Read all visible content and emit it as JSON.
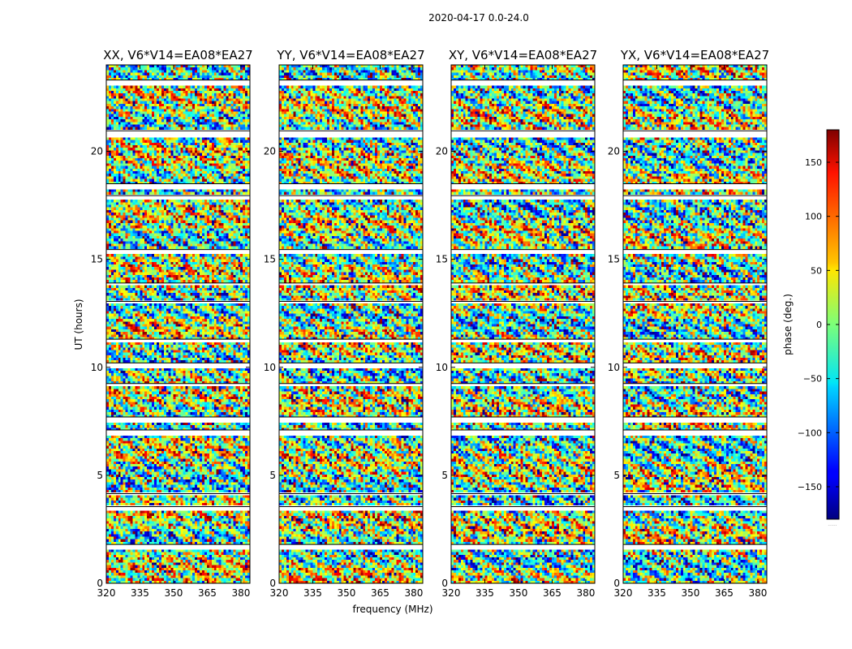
{
  "figure": {
    "suptitle": "2020-04-17 0.0-24.0",
    "xlabel": "frequency (MHz)",
    "ylabel": "UT (hours)",
    "colorbar_label": "phase (deg.)",
    "colorbar_footer": "......"
  },
  "chart_data": {
    "type": "heatmap",
    "colormap": "jet",
    "xlim": [
      320,
      384
    ],
    "ylim": [
      0,
      24
    ],
    "x_ticks": [
      320,
      335,
      350,
      365,
      380
    ],
    "y_ticks": [
      0,
      5,
      10,
      15,
      20
    ],
    "colorbar": {
      "vmin": -180,
      "vmax": 180,
      "ticks": [
        -150,
        -100,
        -50,
        0,
        50,
        100,
        150
      ],
      "tick_labels": [
        "−150",
        "−100",
        "−50",
        "0",
        "50",
        "100",
        "150"
      ]
    },
    "panels": [
      {
        "title": "XX, V6*V14=EA08*EA27"
      },
      {
        "title": "YY, V6*V14=EA08*EA27"
      },
      {
        "title": "XY, V6*V14=EA08*EA27"
      },
      {
        "title": "YX, V6*V14=EA08*EA27"
      }
    ],
    "flagged_time_ranges_hours": [
      [
        1.6,
        1.8
      ],
      [
        3.4,
        3.55
      ],
      [
        4.05,
        4.15
      ],
      [
        6.8,
        7.1
      ],
      [
        7.5,
        7.7
      ],
      [
        9.1,
        9.25
      ],
      [
        9.95,
        10.2
      ],
      [
        11.2,
        11.3
      ],
      [
        12.9,
        13.05
      ],
      [
        13.75,
        13.9
      ],
      [
        15.3,
        15.45
      ],
      [
        17.75,
        17.95
      ],
      [
        18.3,
        18.5
      ],
      [
        20.7,
        20.95
      ],
      [
        23.1,
        23.3
      ]
    ]
  }
}
